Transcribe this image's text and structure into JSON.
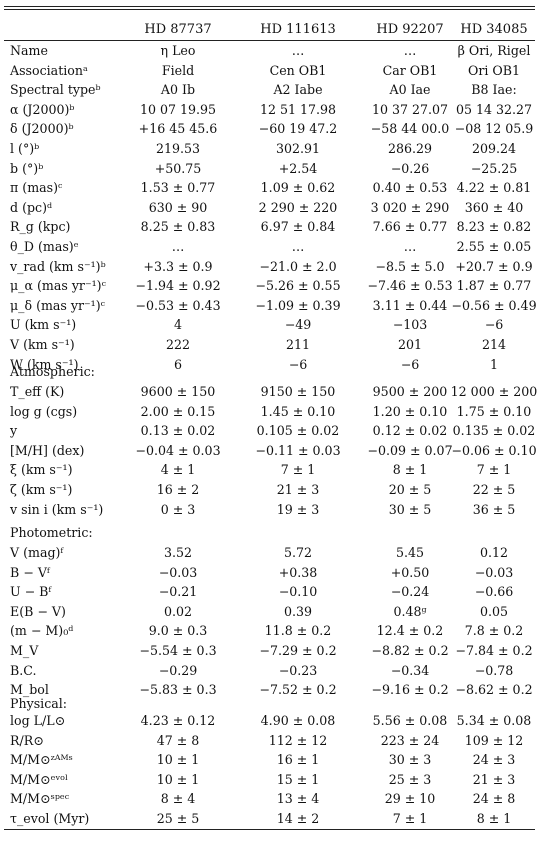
{
  "columns": [
    "HD 87737",
    "HD 111613",
    "HD 92207",
    "HD 34085"
  ],
  "general_rows": [
    {
      "label": "Name",
      "values": [
        "η Leo",
        "…",
        "…",
        "β Ori, Rigel"
      ]
    },
    {
      "label": "Associationᵃ",
      "values": [
        "Field",
        "Cen OB1",
        "Car OB1",
        "Ori OB1"
      ]
    },
    {
      "label": "Spectral typeᵇ",
      "values": [
        "A0 Ib",
        "A2 Iabe",
        "A0 Iae",
        "B8 Iae:"
      ]
    },
    {
      "label": "α (J2000)ᵇ",
      "values": [
        "10 07 19.95",
        "12 51 17.98",
        "10 37 27.07",
        "05 14 32.27"
      ]
    },
    {
      "label": "δ (J2000)ᵇ",
      "values": [
        "+16 45 45.6",
        "−60 19 47.2",
        "−58 44 00.0",
        "−08 12 05.9"
      ]
    },
    {
      "label": "l (°)ᵇ",
      "values": [
        "219.53",
        "302.91",
        "286.29",
        "209.24"
      ]
    },
    {
      "label": "b (°)ᵇ",
      "values": [
        "+50.75",
        "+2.54",
        "−0.26",
        "−25.25"
      ]
    },
    {
      "label": "π (mas)ᶜ",
      "values": [
        "1.53 ± 0.77",
        "1.09 ± 0.62",
        "0.40 ± 0.53",
        "4.22 ± 0.81"
      ]
    },
    {
      "label": "d (pc)ᵈ",
      "values": [
        "630 ± 90",
        "2 290 ± 220",
        "3 020 ± 290",
        "360 ± 40"
      ]
    },
    {
      "label": "R_g (kpc)",
      "values": [
        "8.25 ± 0.83",
        "6.97 ± 0.84",
        "7.66 ± 0.77",
        "8.23 ± 0.82"
      ]
    },
    {
      "label": "θ_D (mas)ᵉ",
      "values": [
        "…",
        "…",
        "…",
        "2.55 ± 0.05"
      ]
    },
    {
      "label": "v_rad (km s⁻¹)ᵇ",
      "values": [
        "+3.3 ± 0.9",
        "−21.0 ± 2.0",
        "−8.5 ± 5.0",
        "+20.7 ± 0.9"
      ]
    },
    {
      "label": "μ_α (mas yr⁻¹)ᶜ",
      "values": [
        "−1.94 ± 0.92",
        "−5.26 ± 0.55",
        "−7.46 ± 0.53",
        "1.87 ± 0.77"
      ]
    },
    {
      "label": "μ_δ (mas yr⁻¹)ᶜ",
      "values": [
        "−0.53 ± 0.43",
        "−1.09 ± 0.39",
        "3.11 ± 0.44",
        "−0.56 ± 0.49"
      ]
    },
    {
      "label": "U (km s⁻¹)",
      "values": [
        "4",
        "−49",
        "−103",
        "−6"
      ]
    },
    {
      "label": "V (km s⁻¹)",
      "values": [
        "222",
        "211",
        "201",
        "214"
      ]
    },
    {
      "label": "W (km s⁻¹)",
      "values": [
        "6",
        "−6",
        "−6",
        "1"
      ]
    }
  ],
  "atmospheric_title": "Atmospheric:",
  "atmospheric_rows": [
    {
      "label": "T_eff (K)",
      "values": [
        "9600 ± 150",
        "9150 ± 150",
        "9500 ± 200",
        "12 000 ± 200"
      ]
    },
    {
      "label": "log g (cgs)",
      "values": [
        "2.00 ± 0.15",
        "1.45 ± 0.10",
        "1.20 ± 0.10",
        "1.75 ± 0.10"
      ]
    },
    {
      "label": "y",
      "values": [
        "0.13 ± 0.02",
        "0.105 ± 0.02",
        "0.12 ± 0.02",
        "0.135 ± 0.02"
      ]
    },
    {
      "label": "[M/H] (dex)",
      "values": [
        "−0.04 ± 0.03",
        "−0.11 ± 0.03",
        "−0.09 ± 0.07",
        "−0.06 ± 0.10"
      ]
    },
    {
      "label": "ξ (km s⁻¹)",
      "values": [
        "4 ± 1",
        "7 ± 1",
        "8 ± 1",
        "7 ± 1"
      ]
    },
    {
      "label": "ζ (km s⁻¹)",
      "values": [
        "16 ± 2",
        "21 ± 3",
        "20 ± 5",
        "22 ± 5"
      ]
    },
    {
      "label": "v sin i (km s⁻¹)",
      "values": [
        "0 ± 3",
        "19 ± 3",
        "30 ± 5",
        "36 ± 5"
      ]
    }
  ],
  "photometric_title": "Photometric:",
  "photometric_rows": [
    {
      "label": "V (mag)ᶠ",
      "values": [
        "3.52",
        "5.72",
        "5.45",
        "0.12"
      ]
    },
    {
      "label": "B − Vᶠ",
      "values": [
        "−0.03",
        "+0.38",
        "+0.50",
        "−0.03"
      ]
    },
    {
      "label": "U − Bᶠ",
      "values": [
        "−0.21",
        "−0.10",
        "−0.24",
        "−0.66"
      ]
    },
    {
      "label": "E(B − V)",
      "values": [
        "0.02",
        "0.39",
        "0.48ᵍ",
        "0.05"
      ]
    },
    {
      "label": "(m − M)₀ᵈ",
      "values": [
        "9.0 ± 0.3",
        "11.8 ± 0.2",
        "12.4 ± 0.2",
        "7.8 ± 0.2"
      ]
    },
    {
      "label": "M_V",
      "values": [
        "−5.54 ± 0.3",
        "−7.29 ± 0.2",
        "−8.82 ± 0.2",
        "−7.84 ± 0.2"
      ]
    },
    {
      "label": "B.C.",
      "values": [
        "−0.29",
        "−0.23",
        "−0.34",
        "−0.78"
      ]
    },
    {
      "label": "M_bol",
      "values": [
        "−5.83 ± 0.3",
        "−7.52 ± 0.2",
        "−9.16 ± 0.2",
        "−8.62 ± 0.2"
      ]
    }
  ],
  "physical_title": "Physical:",
  "physical_rows": [
    {
      "label": "log L/L⊙",
      "values": [
        "4.23 ± 0.12",
        "4.90 ± 0.08",
        "5.56 ± 0.08",
        "5.34 ± 0.08"
      ]
    },
    {
      "label": "R/R⊙",
      "values": [
        "47 ± 8",
        "112 ± 12",
        "223 ± 24",
        "109 ± 12"
      ]
    },
    {
      "label": "M/M⊙ᶻᴬᴹˢ",
      "values": [
        "10 ± 1",
        "16 ± 1",
        "30 ± 3",
        "24 ± 3"
      ]
    },
    {
      "label": "M/M⊙ᵉᵛᵒˡ",
      "values": [
        "10 ± 1",
        "15 ± 1",
        "25 ± 3",
        "21 ± 3"
      ]
    },
    {
      "label": "M/M⊙ˢᵖᵉᶜ",
      "values": [
        "8 ± 4",
        "13 ± 4",
        "29 ± 10",
        "24 ± 8"
      ]
    },
    {
      "label": "τ_evol (Myr)",
      "values": [
        "25 ± 5",
        "14 ± 2",
        "7 ± 1",
        "8 ± 1"
      ]
    }
  ]
}
